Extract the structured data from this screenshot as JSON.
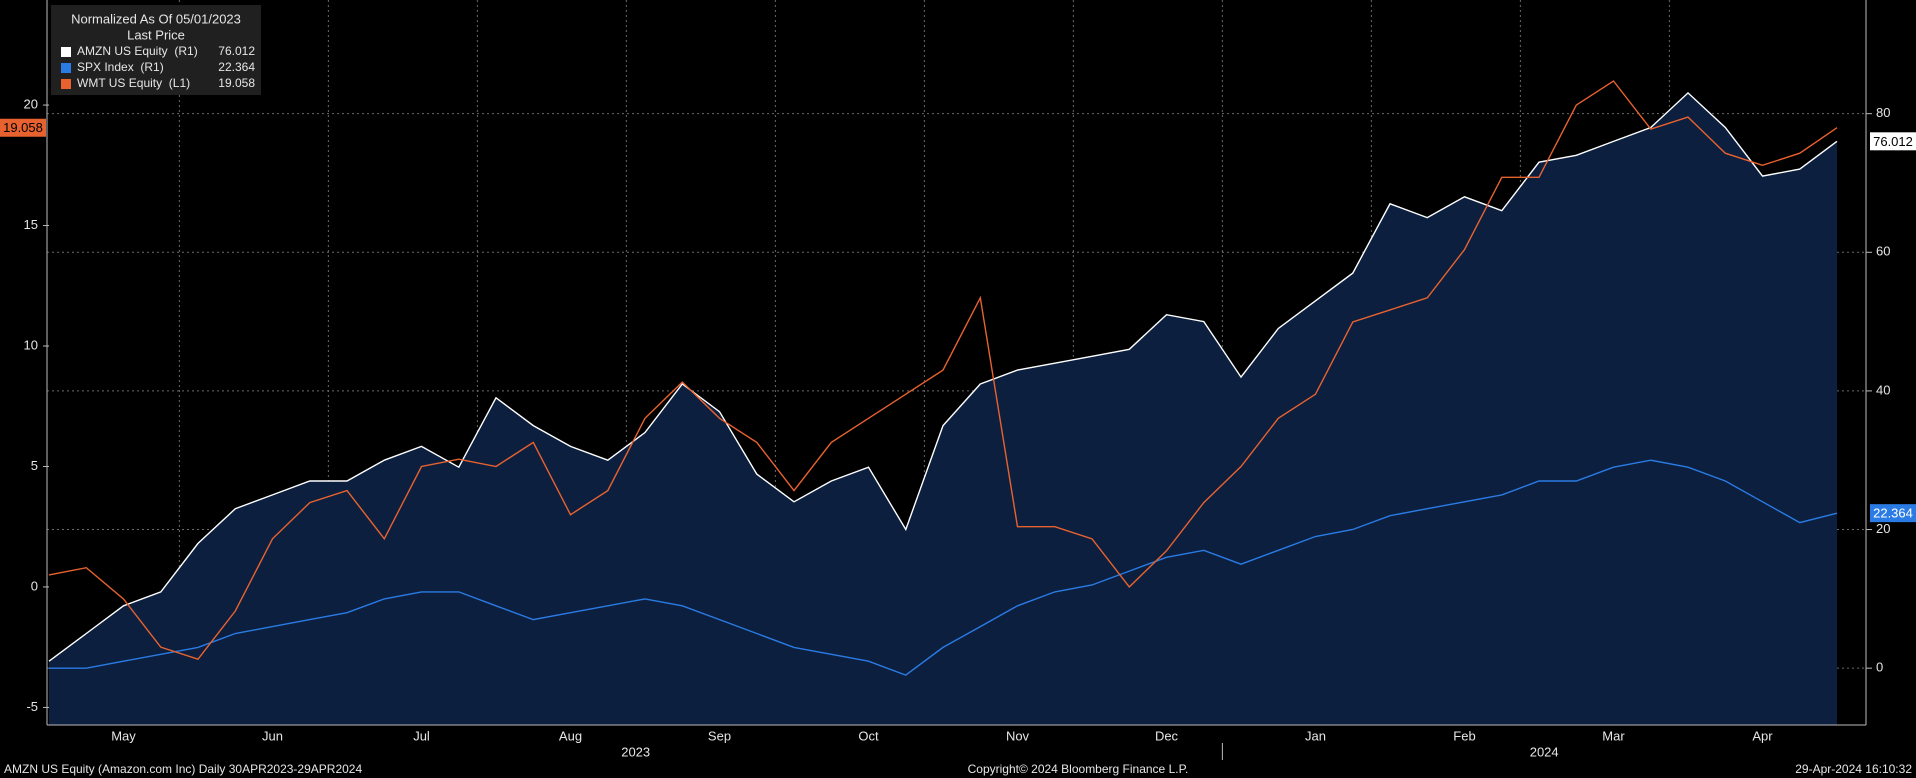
{
  "chart_data": {
    "type": "line",
    "legend_title": "Normalized As Of 05/01/2023",
    "legend_subtitle": "Last Price",
    "categories": [
      null,
      null,
      "May",
      null,
      null,
      null,
      "Jun",
      null,
      null,
      null,
      "Jul",
      null,
      null,
      null,
      "Aug",
      null,
      null,
      null,
      "Sep",
      null,
      null,
      null,
      "Oct",
      null,
      null,
      null,
      "Nov",
      null,
      null,
      null,
      "Dec",
      null,
      null,
      null,
      "Jan",
      null,
      null,
      null,
      "Feb",
      null,
      null,
      null,
      "Mar",
      null,
      null,
      null,
      "Apr",
      null,
      null
    ],
    "years": [
      "2023",
      "2024"
    ],
    "ylim": [
      -5.73,
      24.36
    ],
    "yticks": [
      -5,
      0,
      5,
      10,
      15,
      20
    ],
    "y2lim": [
      -8.2,
      96.4
    ],
    "y2ticks": [
      0,
      20,
      40,
      60,
      80
    ],
    "grid": true,
    "series": [
      {
        "name": "AMZN US Equity  (R1)",
        "color": "#ffffff",
        "fill": "#0c1f3f",
        "axis": "y2",
        "values": [
          1,
          5,
          9,
          11,
          18,
          23,
          25,
          27,
          27,
          30,
          32,
          29,
          39,
          35,
          32,
          30,
          34,
          41,
          37,
          28,
          24,
          27,
          29,
          20,
          35,
          41,
          43,
          44,
          45,
          46,
          51,
          50,
          42,
          49,
          53,
          57,
          67,
          65,
          68,
          66,
          73,
          74,
          76,
          78,
          83,
          78,
          71,
          72,
          76.012
        ]
      },
      {
        "name": "SPX Index  (R1)",
        "color": "#2a7be4",
        "axis": "y2",
        "values": [
          0,
          0,
          1,
          2,
          3,
          5,
          6,
          7,
          8,
          10,
          11,
          11,
          9,
          7,
          8,
          9,
          10,
          9,
          7,
          5,
          3,
          2,
          1,
          -1,
          3,
          6,
          9,
          11,
          12,
          14,
          16,
          17,
          15,
          17,
          19,
          20,
          22,
          23,
          24,
          25,
          27,
          27,
          29,
          30,
          29,
          27,
          24,
          21,
          22.364
        ]
      },
      {
        "name": "WMT US Equity  (L1)",
        "color": "#e8622f",
        "axis": "y",
        "values": [
          0.5,
          0.8,
          -0.5,
          -2.5,
          -3,
          -1,
          2,
          3.5,
          4,
          2,
          5,
          5.3,
          5,
          6,
          3,
          4,
          7,
          8.5,
          7,
          6,
          4,
          6,
          7,
          8,
          9,
          12,
          2.5,
          2.5,
          2,
          0,
          1.5,
          3.5,
          5,
          7,
          8,
          11,
          11.5,
          12,
          14,
          17,
          17,
          20,
          21,
          19,
          19.5,
          18,
          17.5,
          18,
          19.058
        ]
      }
    ],
    "footer": {
      "left": "AMZN US Equity (Amazon.com Inc)  Daily 30APR2023-29APR2024",
      "center": "Copyright© 2024 Bloomberg Finance L.P.",
      "right": "29-Apr-2024 16:10:32"
    }
  }
}
